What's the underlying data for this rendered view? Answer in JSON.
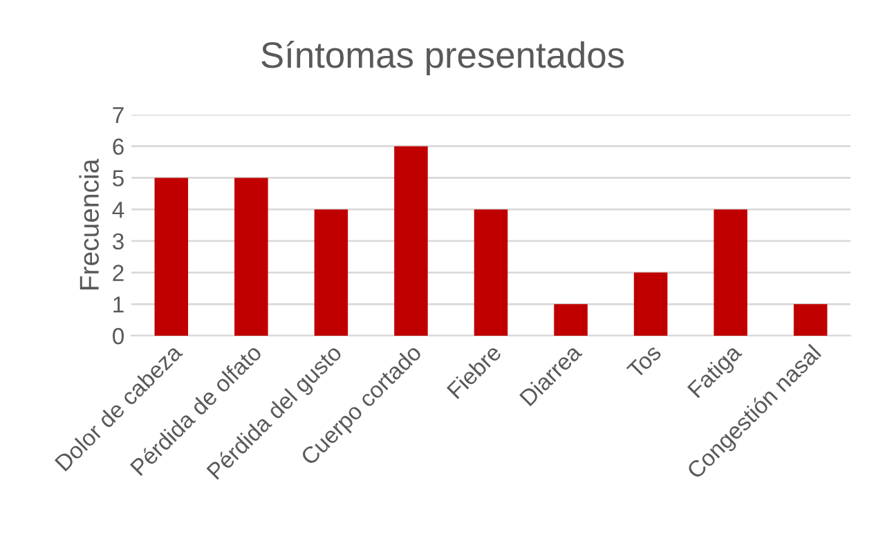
{
  "chart_data": {
    "type": "bar",
    "title": "Síntomas presentados",
    "ylabel": "Frecuencia",
    "categories": [
      "Dolor de cabeza",
      "Pérdida de olfato",
      "Pérdida del gusto",
      "Cuerpo cortado",
      "Fiebre",
      "Diarrea",
      "Tos",
      "Fatiga",
      "Congestión nasal"
    ],
    "values": [
      5,
      5,
      4,
      6,
      4,
      1,
      2,
      4,
      1
    ],
    "color": "#c00000",
    "ylim": [
      0,
      7
    ],
    "yticks": [
      0,
      1,
      2,
      3,
      4,
      5,
      6,
      7
    ],
    "grid": "y",
    "legend": false
  }
}
